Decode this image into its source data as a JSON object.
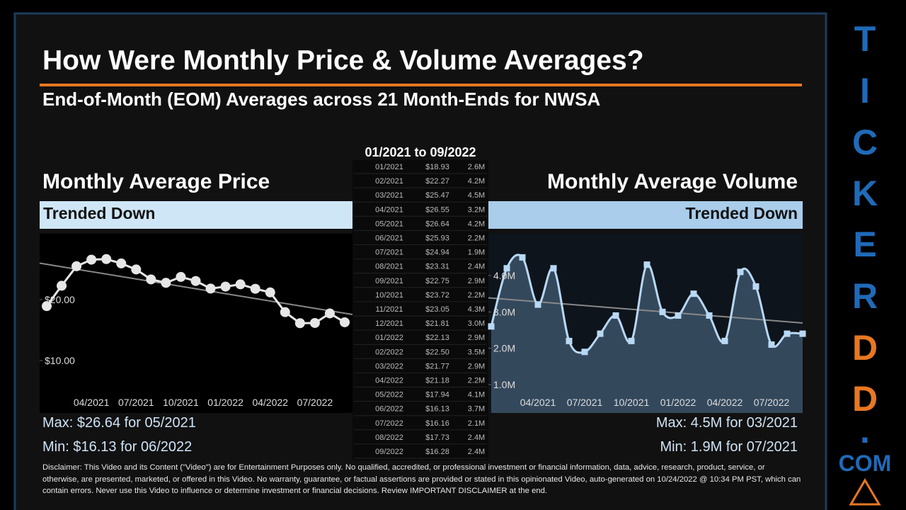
{
  "header": {
    "title": "How Were Monthly Price & Volume Averages?",
    "subtitle": "End-of-Month (EOM) Averages across 21 Month-Ends for NWSA"
  },
  "table": {
    "title": "01/2021 to 09/2022",
    "rows": [
      [
        "01/2021",
        "$18.93",
        "2.6M"
      ],
      [
        "02/2021",
        "$22.27",
        "4.2M"
      ],
      [
        "03/2021",
        "$25.47",
        "4.5M"
      ],
      [
        "04/2021",
        "$26.55",
        "3.2M"
      ],
      [
        "05/2021",
        "$26.64",
        "4.2M"
      ],
      [
        "06/2021",
        "$25.93",
        "2.2M"
      ],
      [
        "07/2021",
        "$24.94",
        "1.9M"
      ],
      [
        "08/2021",
        "$23.31",
        "2.4M"
      ],
      [
        "09/2021",
        "$22.75",
        "2.9M"
      ],
      [
        "10/2021",
        "$23.72",
        "2.2M"
      ],
      [
        "11/2021",
        "$23.05",
        "4.3M"
      ],
      [
        "12/2021",
        "$21.81",
        "3.0M"
      ],
      [
        "01/2022",
        "$22.13",
        "2.9M"
      ],
      [
        "02/2022",
        "$22.50",
        "3.5M"
      ],
      [
        "03/2022",
        "$21.77",
        "2.9M"
      ],
      [
        "04/2022",
        "$21.18",
        "2.2M"
      ],
      [
        "05/2022",
        "$17.94",
        "4.1M"
      ],
      [
        "06/2022",
        "$16.13",
        "3.7M"
      ],
      [
        "07/2022",
        "$16.16",
        "2.1M"
      ],
      [
        "08/2022",
        "$17.73",
        "2.4M"
      ],
      [
        "09/2022",
        "$16.28",
        "2.4M"
      ]
    ]
  },
  "chart_data": [
    {
      "type": "line",
      "title": "Monthly Average Price",
      "trend": "Trended Down",
      "color": "#e6e6e6",
      "trendline": true,
      "categories": [
        "01/2021",
        "02/2021",
        "03/2021",
        "04/2021",
        "05/2021",
        "06/2021",
        "07/2021",
        "08/2021",
        "09/2021",
        "10/2021",
        "11/2021",
        "12/2021",
        "01/2022",
        "02/2022",
        "03/2022",
        "04/2022",
        "05/2022",
        "06/2022",
        "07/2022",
        "08/2022",
        "09/2022"
      ],
      "values": [
        18.93,
        22.27,
        25.47,
        26.55,
        26.64,
        25.93,
        24.94,
        23.31,
        22.75,
        23.72,
        23.05,
        21.81,
        22.13,
        22.5,
        21.77,
        21.18,
        17.94,
        16.13,
        16.16,
        17.73,
        16.28
      ],
      "xticks": [
        "04/2021",
        "07/2021",
        "10/2021",
        "01/2022",
        "04/2022",
        "07/2022"
      ],
      "ylim": [
        1.4,
        30.8
      ],
      "yticks": [
        {
          "value": 10,
          "label": "$10.00"
        },
        {
          "value": 20,
          "label": "$20.00"
        }
      ],
      "max": "Max: $26.64 for 05/2021",
      "min": "Min: $16.13 for 06/2022"
    },
    {
      "type": "area",
      "title": "Monthly Average Volume",
      "trend": "Trended Down",
      "color": "#b8d8f4",
      "fill": "#34485c",
      "trendline": true,
      "categories": [
        "01/2021",
        "02/2021",
        "03/2021",
        "04/2021",
        "05/2021",
        "06/2021",
        "07/2021",
        "08/2021",
        "09/2021",
        "10/2021",
        "11/2021",
        "12/2021",
        "01/2022",
        "02/2022",
        "03/2022",
        "04/2022",
        "05/2022",
        "06/2022",
        "07/2022",
        "08/2022",
        "09/2022"
      ],
      "values": [
        2.6,
        4.2,
        4.5,
        3.2,
        4.2,
        2.2,
        1.9,
        2.4,
        2.9,
        2.2,
        4.3,
        3.0,
        2.9,
        3.5,
        2.9,
        2.2,
        4.1,
        3.7,
        2.1,
        2.4,
        2.4
      ],
      "xticks": [
        "04/2021",
        "07/2021",
        "10/2021",
        "01/2022",
        "04/2022",
        "07/2022"
      ],
      "ylim": [
        0.22,
        5.15
      ],
      "yticks": [
        {
          "value": 1,
          "label": "1.0M"
        },
        {
          "value": 2,
          "label": "2.0M"
        },
        {
          "value": 3,
          "label": "3.0M"
        },
        {
          "value": 4,
          "label": "4.0M"
        }
      ],
      "max": "Max: 4.5M for 03/2021",
      "min": "Min: 1.9M for 07/2021"
    }
  ],
  "footer": {
    "disclaimer": "Disclaimer: This Video and its Content (\"Video\") are for Entertainment Purposes only. No qualified, accredited, or professional investment or financial information, data, advice, research, product, service, or otherwise, are presented, marketed, or offered in this Video. No warranty, guarantee, or factual assertions are provided or stated in this opinionated Video, auto-generated on 10/24/2022 @ 10:34 PM PST, which can contain errors. Never use this Video to influence or determine investment or financial decisions. Review IMPORTANT DISCLAIMER at the end."
  },
  "brand": {
    "letters": [
      "T",
      "I",
      "C",
      "K",
      "E",
      "R",
      "D",
      "D",
      ".",
      "COM"
    ]
  }
}
